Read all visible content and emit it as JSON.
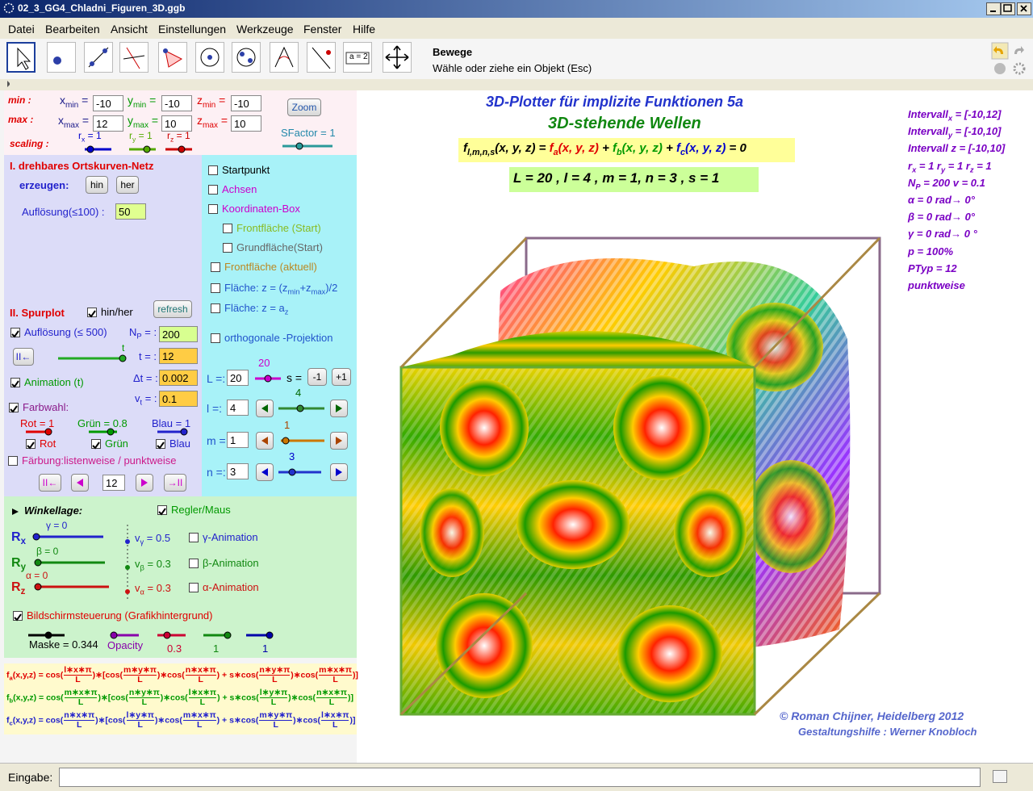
{
  "window": {
    "title": "02_3_GG4_Chladni_Figuren_3D.ggb"
  },
  "menu": [
    "Datei",
    "Bearbeiten",
    "Ansicht",
    "Einstellungen",
    "Werkzeuge",
    "Fenster",
    "Hilfe"
  ],
  "toolbar": {
    "tool_name": "Bewege",
    "tool_help": "Wähle oder ziehe ein Objekt (Esc)",
    "icon_label": "a = 2"
  },
  "ranges": {
    "row_labels": [
      "min :",
      "max :",
      "scaling :"
    ],
    "fields": [
      {
        "label": [
          "x",
          {
            "sub": "min"
          },
          " ="
        ],
        "value": -10
      },
      {
        "label": [
          "y",
          {
            "sub": "min"
          },
          " ="
        ],
        "value": -10
      },
      {
        "label": [
          "z",
          {
            "sub": "min"
          },
          " ="
        ],
        "value": -10
      },
      {
        "label": [
          "x",
          {
            "sub": "max"
          },
          " ="
        ],
        "value": 12
      },
      {
        "label": [
          "y",
          {
            "sub": "max"
          },
          " ="
        ],
        "value": 10
      },
      {
        "label": [
          "z",
          {
            "sub": "max"
          },
          " ="
        ],
        "value": 10
      }
    ],
    "zoom": "Zoom",
    "sfactor": "SFactor = 1",
    "scales": [
      [
        "r",
        {
          "sub": "x"
        },
        " = 1"
      ],
      [
        "r",
        {
          "sub": "y"
        },
        " = 1"
      ],
      [
        "r",
        {
          "sub": "z"
        },
        " = 1"
      ]
    ]
  },
  "net": {
    "title": "I. drehbares Ortskurven-Netz",
    "create": "erzeugen:",
    "buttons": [
      "hin",
      "her"
    ],
    "resolution_label": "Auflösung(≤100) :",
    "resolution": 50
  },
  "trace": {
    "title": "II. Spurplot",
    "hinher": {
      "label": "hin/her",
      "checked": true
    },
    "refresh": "refresh",
    "resolution": {
      "label": "Auflösung (≤ 500)",
      "checked": true
    },
    "np_label": [
      "N",
      {
        "sub": "P"
      },
      " = :"
    ],
    "np": 200,
    "reset": "II←",
    "t_slider": "t",
    "t_label": "t = :",
    "t": 12,
    "animation": {
      "label": "Animation (t)",
      "checked": true
    },
    "dt_label": "Δt = :",
    "dt": 0.002,
    "vt_label": [
      "v",
      {
        "sub": "t"
      },
      " = :"
    ],
    "vt": 0.1,
    "colorchoice": {
      "label": "Farbwahl:",
      "checked": true
    },
    "sliders": [
      "Rot = 1",
      "Grün = 0.8",
      "Blau = 1"
    ],
    "channels": [
      {
        "label": "Rot",
        "checked": true
      },
      {
        "label": "Grün",
        "checked": true
      },
      {
        "label": "Blau",
        "checked": true
      }
    ],
    "coloring": {
      "label": "Färbung:listenweise / punktweise",
      "checked": false
    },
    "nav": [
      "II←",
      "→II"
    ],
    "index": 12
  },
  "options": [
    {
      "label": "Startpunkt",
      "checked": false
    },
    {
      "label": "Achsen",
      "checked": false
    },
    {
      "label": "Koordinaten-Box",
      "checked": false
    },
    {
      "label": "Frontfläche (Start)",
      "checked": false
    },
    {
      "label": "Grundfläche(Start)",
      "checked": false
    },
    {
      "label": "Frontfläche (aktuell)",
      "checked": false
    },
    {
      "label": [
        "Fläche: z = (z",
        {
          "sub": "min"
        },
        "+z",
        {
          "sub": "max"
        },
        ")/2"
      ],
      "checked": false
    },
    {
      "label": [
        "Fläche: z = a",
        {
          "sub": "z"
        }
      ],
      "checked": false
    },
    {
      "label": "orthogonale -Projektion",
      "checked": false
    }
  ],
  "params": [
    {
      "label": "L =:",
      "value": 20,
      "slider_label": 20
    },
    {
      "label": "l =:",
      "value": 4,
      "slider_label": 4
    },
    {
      "label": "m =:",
      "value": 1,
      "slider_label": 1
    },
    {
      "label": "n =:",
      "value": 3,
      "slider_label": 3
    }
  ],
  "s_control": {
    "label": "s =",
    "buttons": [
      "-1",
      "+1"
    ]
  },
  "angles": {
    "title": "Winkellage:",
    "mode": {
      "label": "Regler/Maus",
      "checked": true
    },
    "rows": [
      {
        "axis": [
          "R",
          {
            "sub": "x"
          }
        ],
        "slider": "γ = 0",
        "speed": [
          "v",
          {
            "sub": "γ"
          },
          " = 0.5"
        ],
        "anim": {
          "label": "γ-Animation",
          "checked": false
        }
      },
      {
        "axis": [
          "R",
          {
            "sub": "y"
          }
        ],
        "slider": "β = 0",
        "speed": [
          "v",
          {
            "sub": "β"
          },
          " = 0.3"
        ],
        "anim": {
          "label": "β-Animation",
          "checked": false
        }
      },
      {
        "axis": [
          "R",
          {
            "sub": "z"
          }
        ],
        "slider": "α = 0",
        "speed": [
          "v",
          {
            "sub": "α"
          },
          " = 0.3"
        ],
        "anim": {
          "label": "α-Animation",
          "checked": false
        }
      }
    ],
    "screen": {
      "label": "Bildschirmsteuerung (Grafikhintergrund)",
      "checked": true
    },
    "screen_sliders": [
      "Maske = 0.344",
      "Opacity",
      "0.3",
      "1",
      "1"
    ]
  },
  "formulas": [
    [
      "f",
      {
        "sub": "a"
      },
      "(x,y,z) = cos(",
      {
        "num": "l∗x∗π",
        "den": "L"
      },
      ")∗[cos(",
      {
        "num": "m∗y∗π",
        "den": "L"
      },
      ")∗cos(",
      {
        "num": "n∗x∗π",
        "den": "L"
      },
      ") + s∗cos(",
      {
        "num": "n∗y∗π",
        "den": "L"
      },
      ")∗cos(",
      {
        "num": "m∗x∗π",
        "den": "L"
      },
      ")]"
    ],
    [
      "f",
      {
        "sub": "b"
      },
      "(x,y,z) = cos(",
      {
        "num": "m∗x∗π",
        "den": "L"
      },
      ")∗[cos(",
      {
        "num": "n∗y∗π",
        "den": "L"
      },
      ")∗cos(",
      {
        "num": "l∗x∗π",
        "den": "L"
      },
      ") + s∗cos(",
      {
        "num": "l∗y∗π",
        "den": "L"
      },
      ")∗cos(",
      {
        "num": "n∗x∗π",
        "den": "L"
      },
      ")]"
    ],
    [
      "f",
      {
        "sub": "c"
      },
      "(x,y,z) = cos(",
      {
        "num": "n∗x∗π",
        "den": "L"
      },
      ")∗[cos(",
      {
        "num": "l∗y∗π",
        "den": "L"
      },
      ")∗cos(",
      {
        "num": "m∗x∗π",
        "den": "L"
      },
      ") + s∗cos(",
      {
        "num": "m∗y∗π",
        "den": "L"
      },
      ")∗cos(",
      {
        "num": "l∗x∗π",
        "den": "L"
      },
      ")]"
    ]
  ],
  "graphics": {
    "title": "3D-Plotter für implizite  Funktionen 5a",
    "subtitle": "3D-stehende Wellen",
    "equation": [
      {
        "t": "f",
        "color": "#000000"
      },
      {
        "sub": "l,m,n,s",
        "color": "#000000"
      },
      {
        "t": "(x, y, z) = ",
        "color": "#000000"
      },
      {
        "t": "f",
        "color": "#e00000"
      },
      {
        "sub": "a",
        "color": "#e00000"
      },
      {
        "t": "(x, y, z)",
        "color": "#e00000"
      },
      {
        "t": " + ",
        "color": "#000000"
      },
      {
        "t": "f",
        "color": "#009900"
      },
      {
        "sub": "b",
        "color": "#009900"
      },
      {
        "t": "(x, y, z)",
        "color": "#009900"
      },
      {
        "t": " + ",
        "color": "#000000"
      },
      {
        "t": "f",
        "color": "#0000cc"
      },
      {
        "sub": "c",
        "color": "#0000cc"
      },
      {
        "t": "(x, y, z)",
        "color": "#0000cc"
      },
      {
        "t": " = 0",
        "color": "#000000"
      }
    ],
    "params_line": "L = 20 , l = 4 , m = 1,  n = 3 , s = 1",
    "info": [
      [
        "Intervall",
        {
          "sub": "x"
        },
        " = [-10,12]"
      ],
      [
        "Intervall",
        {
          "sub": "y"
        },
        " = [-10,10]"
      ],
      "Intervall z = [-10,10]",
      [
        "r",
        {
          "sub": "x"
        },
        " = 1  r",
        {
          "sub": "y"
        },
        " = 1  r",
        {
          "sub": "z"
        },
        " = 1"
      ],
      [
        "N",
        {
          "sub": "P"
        },
        " = 200   v = 0.1"
      ],
      "α = 0 rad→ 0°",
      "β = 0 rad→ 0°",
      "γ = 0 rad→ 0 °",
      "p = 100%",
      "PTyp = 12",
      "punktweise"
    ],
    "credit": "©  Roman Chijner,  Heidelberg 2012",
    "credit2": "Gestaltungshilfe : Werner Knobloch"
  },
  "input_bar": {
    "label": "Eingabe:"
  }
}
